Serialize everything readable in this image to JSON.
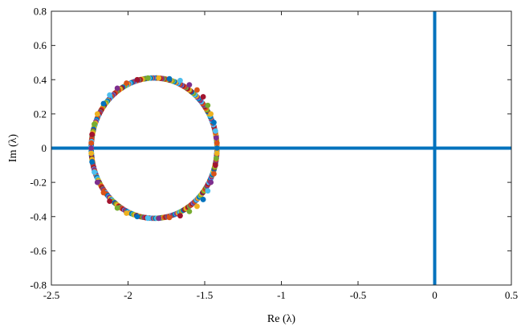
{
  "chart_data": {
    "type": "scatter",
    "xlabel": "Re (λ)",
    "ylabel": "Im (λ)",
    "xlim": [
      -2.5,
      0.5
    ],
    "ylim": [
      -0.8,
      0.8
    ],
    "xticks": [
      -2.5,
      -2,
      -1.5,
      -1,
      -0.5,
      0,
      0.5
    ],
    "yticks": [
      -0.8,
      -0.6,
      -0.4,
      -0.2,
      0,
      0.2,
      0.4,
      0.6,
      0.8
    ],
    "xtick_labels": [
      "-2.5",
      "-2",
      "-1.5",
      "-1",
      "-0.5",
      "0",
      "0.5"
    ],
    "ytick_labels": [
      "-0.8",
      "-0.6",
      "-0.4",
      "-0.2",
      "0",
      "0.2",
      "0.4",
      "0.6",
      "0.8"
    ],
    "grid": false,
    "reference_lines": [
      {
        "orientation": "horizontal",
        "y": 0,
        "color": "#0072BD"
      },
      {
        "orientation": "vertical",
        "x": 0,
        "y_range": [
          -0.8,
          0.8
        ],
        "color": "#0072BD"
      }
    ],
    "eigenvalue_locus": {
      "shape": "ellipse",
      "center": [
        -1.83,
        0
      ],
      "re_range": [
        -2.24,
        -1.42
      ],
      "im_range": [
        -0.41,
        0.41
      ],
      "marker_colors": [
        "#0072BD",
        "#D95319",
        "#EDB120",
        "#7E2F8E",
        "#77AC30",
        "#4DBEEE",
        "#A2142F"
      ]
    },
    "series": [
      {
        "points": [
          [
            -1.42,
            0.0
          ],
          [
            -1.42,
            0.03
          ],
          [
            -1.42,
            -0.03
          ],
          [
            -1.425,
            0.06
          ],
          [
            -1.425,
            -0.06
          ],
          [
            -1.43,
            0.1
          ],
          [
            -1.43,
            -0.1
          ],
          [
            -1.44,
            0.15
          ],
          [
            -1.44,
            -0.15
          ],
          [
            -1.46,
            0.2
          ],
          [
            -1.46,
            -0.2
          ],
          [
            -1.48,
            0.25
          ],
          [
            -1.48,
            -0.25
          ],
          [
            -1.51,
            0.3
          ],
          [
            -1.51,
            -0.3
          ],
          [
            -1.55,
            0.34
          ],
          [
            -1.55,
            -0.34
          ],
          [
            -1.6,
            0.37
          ],
          [
            -1.6,
            -0.37
          ],
          [
            -1.66,
            0.395
          ],
          [
            -1.66,
            -0.395
          ],
          [
            -1.73,
            0.405
          ],
          [
            -1.73,
            -0.405
          ],
          [
            -1.8,
            0.41
          ],
          [
            -1.8,
            -0.41
          ],
          [
            -1.87,
            0.41
          ],
          [
            -1.87,
            -0.41
          ],
          [
            -1.94,
            0.4
          ],
          [
            -1.94,
            -0.4
          ],
          [
            -2.01,
            0.38
          ],
          [
            -2.01,
            -0.38
          ],
          [
            -2.07,
            0.35
          ],
          [
            -2.07,
            -0.35
          ],
          [
            -2.12,
            0.31
          ],
          [
            -2.12,
            -0.31
          ],
          [
            -2.16,
            0.26
          ],
          [
            -2.16,
            -0.26
          ],
          [
            -2.2,
            0.2
          ],
          [
            -2.2,
            -0.2
          ],
          [
            -2.22,
            0.14
          ],
          [
            -2.22,
            -0.14
          ],
          [
            -2.235,
            0.08
          ],
          [
            -2.235,
            -0.08
          ],
          [
            -2.24,
            0.03
          ],
          [
            -2.24,
            -0.03
          ],
          [
            -2.24,
            0.0
          ]
        ]
      }
    ]
  }
}
